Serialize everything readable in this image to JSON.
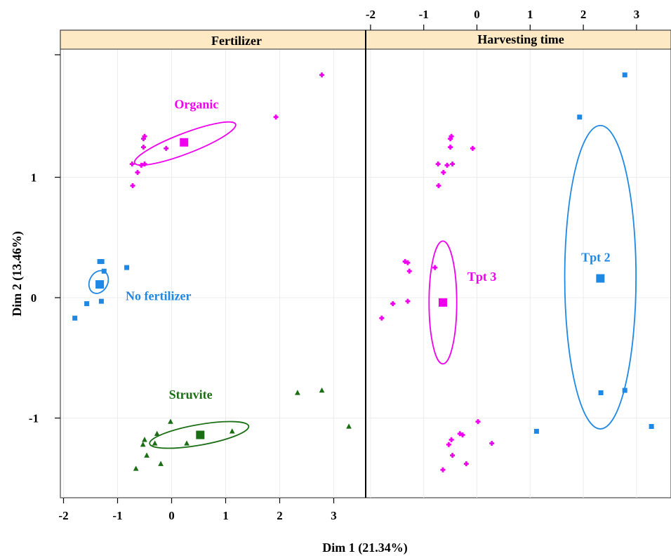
{
  "chart_data": {
    "type": "scatter",
    "xlabel": "Dim 1 (21.34%)",
    "ylabel": "Dim 2 (13.46%)",
    "xlim": [
      -2.1,
      3.55
    ],
    "ylim": [
      -1.68,
      2.02
    ],
    "bottom_ticks": [
      -2,
      -1,
      0,
      1,
      2,
      3
    ],
    "top_ticks": [
      -2,
      -1,
      0,
      1,
      2,
      3
    ],
    "y_ticks": [
      -1,
      0,
      1
    ],
    "grid": true,
    "colors": {
      "blue": "#1e88e5",
      "magenta": "#ee00ee",
      "green": "#1b6e14",
      "strip": "#fde9c4"
    },
    "panels": [
      {
        "id": "fertilizer",
        "title": "Fertilizer",
        "groups": [
          {
            "label": "Organic",
            "color": "#ee00ee",
            "marker": "cross",
            "label_pos": [
              0.05,
              1.57
            ],
            "centroid": [
              0.23,
              1.29
            ],
            "ellipse": {
              "cx": 0.25,
              "cy": 1.28,
              "rx": 1.0,
              "ry": 0.085,
              "angle_deg": -21
            },
            "points": [
              [
                -0.72,
                0.93
              ],
              [
                -0.63,
                1.04
              ],
              [
                -0.56,
                1.1
              ],
              [
                -0.73,
                1.11
              ],
              [
                -0.5,
                1.11
              ],
              [
                -0.52,
                1.25
              ],
              [
                -0.52,
                1.32
              ],
              [
                -0.5,
                1.34
              ],
              [
                -0.1,
                1.24
              ],
              [
                1.93,
                1.5
              ],
              [
                2.78,
                1.85
              ]
            ]
          },
          {
            "label": "No fertilizer",
            "color": "#1e88e5",
            "marker": "square",
            "label_pos": [
              -0.85,
              -0.02
            ],
            "centroid": [
              -1.33,
              0.11
            ],
            "ellipse": {
              "cx": -1.35,
              "cy": 0.13,
              "rx": 0.22,
              "ry": 0.075,
              "angle_deg": -63
            },
            "points": [
              [
                -1.79,
                -0.17
              ],
              [
                -1.57,
                -0.05
              ],
              [
                -1.3,
                -0.03
              ],
              [
                -1.25,
                0.22
              ],
              [
                -1.29,
                0.3
              ],
              [
                -1.33,
                0.3
              ],
              [
                -0.83,
                0.25
              ]
            ]
          },
          {
            "label": "Struvite",
            "color": "#1b6e14",
            "marker": "triangle",
            "label_pos": [
              -0.05,
              -0.84
            ],
            "centroid": [
              0.53,
              -1.14
            ],
            "ellipse": {
              "cx": 0.51,
              "cy": -1.14,
              "rx": 0.93,
              "ry": 0.085,
              "angle_deg": -10
            },
            "points": [
              [
                -0.66,
                -1.42
              ],
              [
                -0.46,
                -1.31
              ],
              [
                -0.53,
                -1.22
              ],
              [
                -0.5,
                -1.18
              ],
              [
                -0.31,
                -1.21
              ],
              [
                -0.27,
                -1.13
              ],
              [
                -0.2,
                -1.38
              ],
              [
                -0.02,
                -1.03
              ],
              [
                0.28,
                -1.21
              ],
              [
                1.12,
                -1.11
              ],
              [
                2.33,
                -0.79
              ],
              [
                2.78,
                -0.77
              ],
              [
                3.28,
                -1.07
              ]
            ]
          }
        ]
      },
      {
        "id": "harvesting",
        "title": "Harvesting time",
        "groups": [
          {
            "label": "Tpt 3",
            "color": "#ee00ee",
            "marker": "cross",
            "label_pos": [
              -0.18,
              0.14
            ],
            "centroid": [
              -0.64,
              -0.04
            ],
            "ellipse": {
              "cx": -0.64,
              "cy": -0.04,
              "rx": 0.26,
              "ry": 0.51,
              "angle_deg": 0
            },
            "points": [
              [
                -1.79,
                -0.17
              ],
              [
                -1.58,
                -0.05
              ],
              [
                -1.3,
                -0.03
              ],
              [
                -1.27,
                0.22
              ],
              [
                -1.3,
                0.29
              ],
              [
                -1.35,
                0.3
              ],
              [
                -0.79,
                0.25
              ],
              [
                -0.72,
                0.93
              ],
              [
                -0.63,
                1.04
              ],
              [
                -0.56,
                1.1
              ],
              [
                -0.73,
                1.11
              ],
              [
                -0.46,
                1.11
              ],
              [
                -0.5,
                1.25
              ],
              [
                -0.5,
                1.32
              ],
              [
                -0.48,
                1.34
              ],
              [
                -0.08,
                1.24
              ],
              [
                0.02,
                -1.03
              ],
              [
                -0.32,
                -1.13
              ],
              [
                -0.27,
                -1.14
              ],
              [
                -0.48,
                -1.18
              ],
              [
                -0.53,
                -1.22
              ],
              [
                0.28,
                -1.21
              ],
              [
                -0.46,
                -1.31
              ],
              [
                -0.2,
                -1.38
              ],
              [
                -0.64,
                -1.43
              ]
            ]
          },
          {
            "label": "Tpt 2",
            "color": "#1e88e5",
            "marker": "square",
            "label_pos": [
              1.96,
              0.3
            ],
            "centroid": [
              2.32,
              0.16
            ],
            "ellipse": {
              "cx": 2.32,
              "cy": 0.17,
              "rx": 0.67,
              "ry": 1.26,
              "angle_deg": 0
            },
            "points": [
              [
                1.93,
                1.5
              ],
              [
                2.78,
                1.85
              ],
              [
                2.33,
                -0.79
              ],
              [
                2.78,
                -0.77
              ],
              [
                1.12,
                -1.11
              ],
              [
                3.28,
                -1.07
              ]
            ]
          }
        ]
      }
    ]
  }
}
